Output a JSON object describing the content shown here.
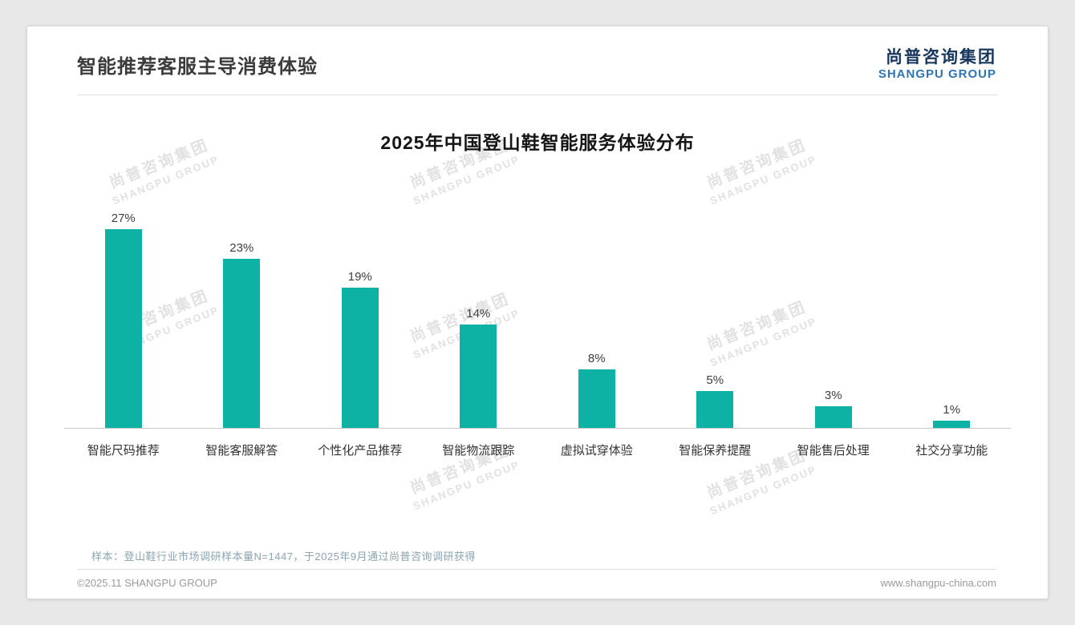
{
  "page": {
    "header": {
      "title": "智能推荐客服主导消费体验",
      "logo": {
        "cn": "尚普咨询集团",
        "en": "SHANGPU GROUP"
      }
    },
    "watermark": {
      "cn": "尚普咨询集团",
      "en": "SHANGPU GROUP"
    },
    "footnote": "样本：登山鞋行业市场调研样本量N=1447，于2025年9月通过尚普咨询调研获得",
    "footer": {
      "left": "©2025.11 SHANGPU GROUP",
      "right": "www.shangpu-china.com"
    }
  },
  "chart_data": {
    "type": "bar",
    "title": "2025年中国登山鞋智能服务体验分布",
    "categories": [
      "智能尺码推荐",
      "智能客服解答",
      "个性化产品推荐",
      "智能物流跟踪",
      "虚拟试穿体验",
      "智能保养提醒",
      "智能售后处理",
      "社交分享功能"
    ],
    "values": [
      27,
      23,
      19,
      14,
      8,
      5,
      3,
      1
    ],
    "value_labels": [
      "27%",
      "23%",
      "19%",
      "14%",
      "8%",
      "5%",
      "3%",
      "1%"
    ],
    "unit": "%",
    "ylim": [
      0,
      30
    ],
    "grid": false,
    "legend": "none",
    "bar_color": "#0eb2a4",
    "axis_color": "#c9c9c9"
  }
}
